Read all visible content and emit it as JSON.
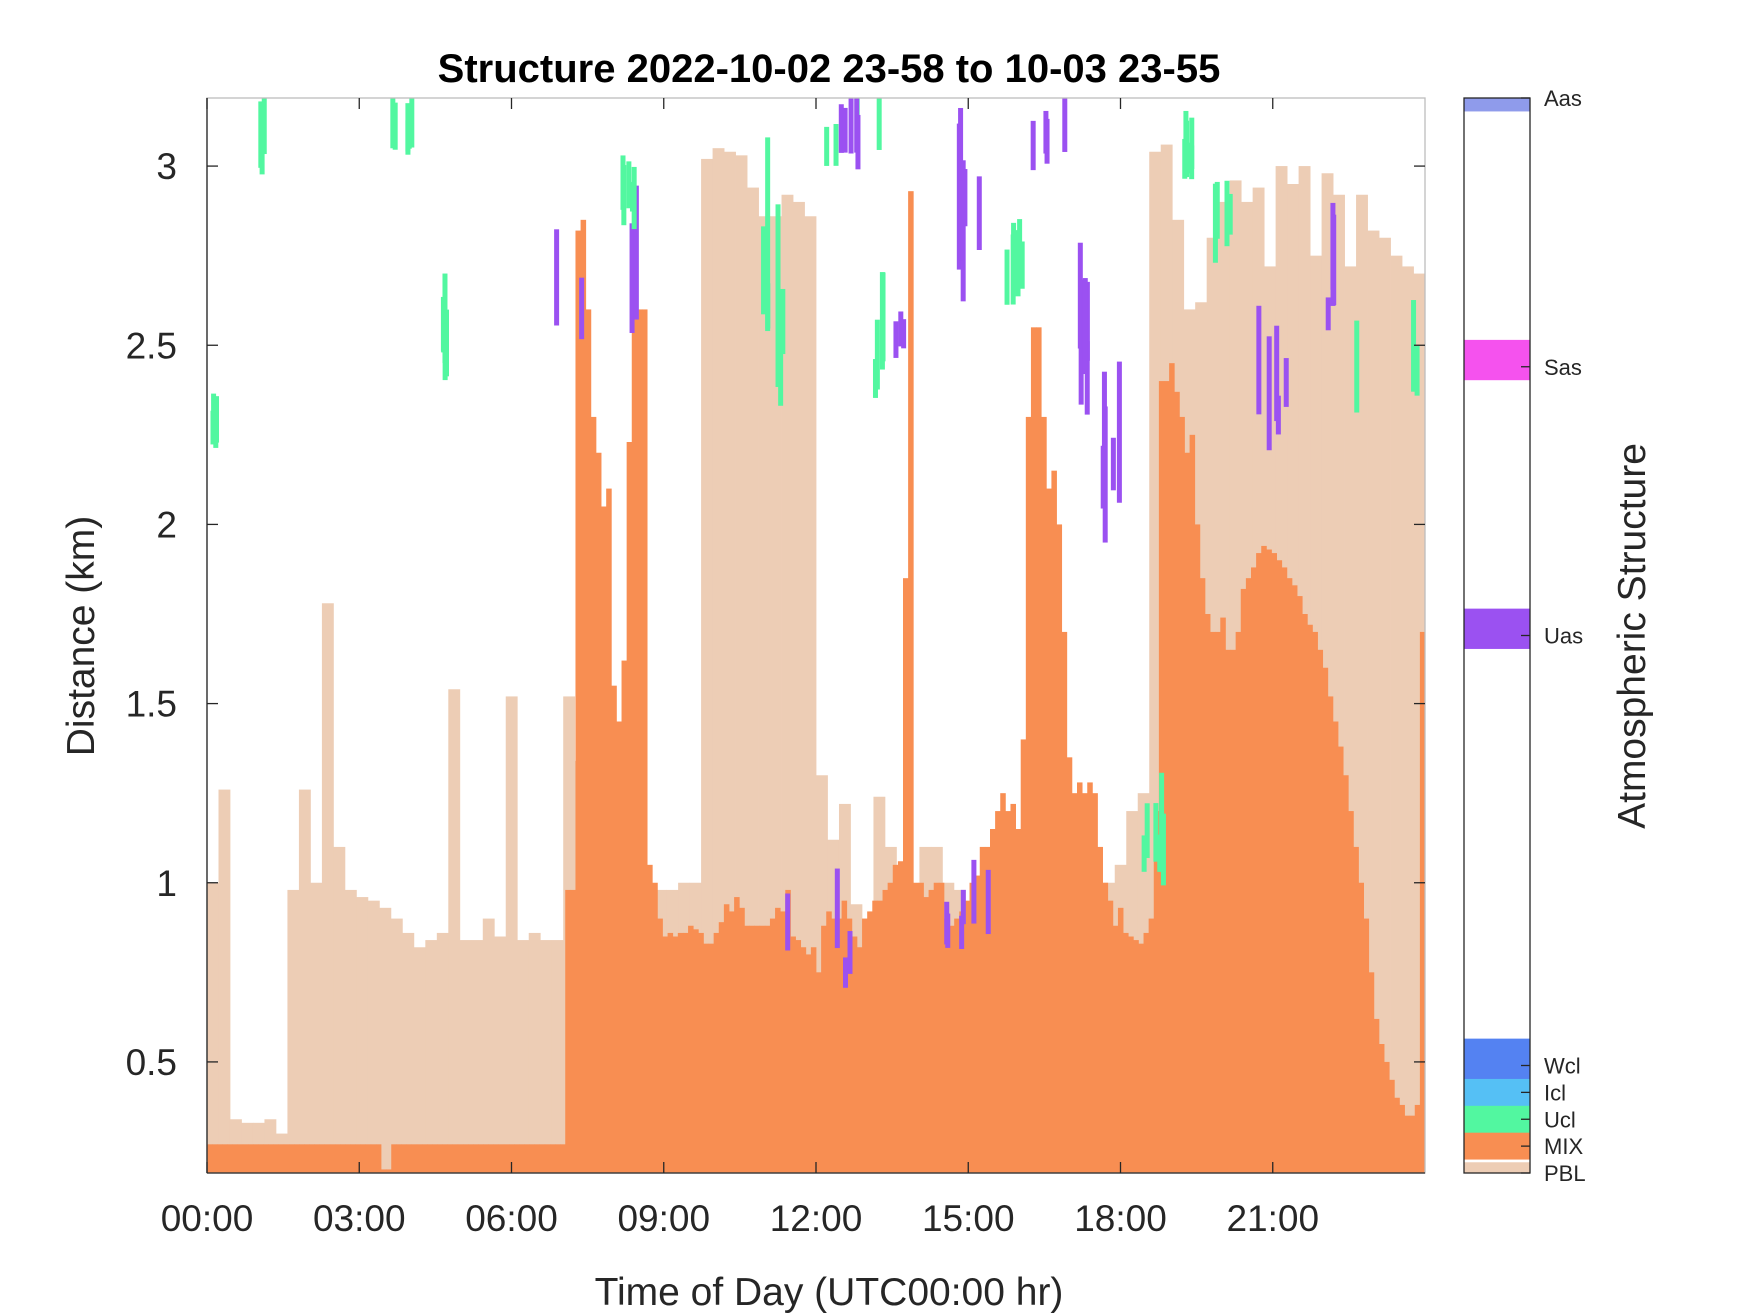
{
  "chart_data": {
    "type": "heatmap",
    "title": "Structure 2022-10-02 23-58 to 10-03 23-55",
    "xlabel": "Time of Day (UTC00:00 hr)",
    "ylabel": "Distance (km)",
    "xlim": [
      0,
      24
    ],
    "ylim": [
      0.19,
      3.19
    ],
    "x_ticks": [
      {
        "v": 0,
        "label": "00:00"
      },
      {
        "v": 3,
        "label": "03:00"
      },
      {
        "v": 6,
        "label": "06:00"
      },
      {
        "v": 9,
        "label": "09:00"
      },
      {
        "v": 12,
        "label": "12:00"
      },
      {
        "v": 15,
        "label": "15:00"
      },
      {
        "v": 18,
        "label": "18:00"
      },
      {
        "v": 21,
        "label": "21:00"
      }
    ],
    "y_ticks": [
      {
        "v": 0.5,
        "label": "0.5"
      },
      {
        "v": 1,
        "label": "1"
      },
      {
        "v": 1.5,
        "label": "1.5"
      },
      {
        "v": 2,
        "label": "2"
      },
      {
        "v": 2.5,
        "label": "2.5"
      },
      {
        "v": 3,
        "label": "3"
      }
    ],
    "colorbar": {
      "label": "Atmospheric Structure",
      "classes": [
        {
          "name": "PBL",
          "color": "#EDCDB5"
        },
        {
          "name": "MIX",
          "color": "#F88E52"
        },
        {
          "name": "Ucl",
          "color": "#52F7A0"
        },
        {
          "name": "Icl",
          "color": "#55C0F5"
        },
        {
          "name": "Wcl",
          "color": "#5482F2"
        },
        {
          "name": "Uas",
          "color": "#9B51F1"
        },
        {
          "name": "Sas",
          "color": "#F552EE"
        },
        {
          "name": "Aas",
          "color": "#8F9BEB"
        }
      ]
    },
    "pbl_top_km": [
      1.0,
      1.26,
      0.34,
      0.33,
      0.33,
      0.34,
      0.3,
      0.98,
      1.26,
      1.0,
      1.78,
      1.1,
      0.98,
      0.96,
      0.95,
      0.93,
      0.9,
      0.86,
      0.82,
      0.84,
      0.86,
      1.54,
      0.84,
      0.84,
      0.9,
      0.85,
      1.52,
      0.84,
      0.86,
      0.84,
      0.84,
      1.52,
      1.34,
      1.0,
      0.2,
      0.2,
      0.92,
      0.9,
      0.9,
      0.98,
      0.98,
      1.0,
      1.0,
      3.02,
      3.05,
      3.04,
      3.03,
      2.94,
      2.86,
      2.86,
      2.92,
      2.9,
      2.86,
      1.3,
      1.12,
      1.22,
      0.94,
      0.9,
      1.24,
      1.1,
      1.0,
      0.86,
      1.1,
      1.1,
      1.0,
      0.98,
      0.9,
      0.96,
      0.92,
      0.84,
      0.84,
      0.84,
      0.82,
      1.7,
      0.82,
      0.88,
      0.9,
      0.93,
      1.0,
      1.05,
      1.2,
      1.25,
      3.04,
      3.06,
      2.85,
      2.6,
      2.62,
      2.8,
      2.9,
      2.96,
      2.9,
      2.94,
      2.72,
      3.0,
      2.95,
      3.0,
      2.75,
      2.98,
      2.92,
      2.72,
      2.92,
      2.82,
      2.8,
      2.75,
      2.72,
      2.7
    ],
    "mix_top_km": [
      0.27,
      0.27,
      0.27,
      0.27,
      0.27,
      0.27,
      0.27,
      0.27,
      0.27,
      0.27,
      0.27,
      0.27,
      0.27,
      0.27,
      0.27,
      0.27,
      0.27,
      0.27,
      0.27,
      0.27,
      0.27,
      0.27,
      0.27,
      0.27,
      0.27,
      0.27,
      0.27,
      0.27,
      0.27,
      0.27,
      0.27,
      0.27,
      0.27,
      0.27,
      0.2,
      0.2,
      0.27,
      0.27,
      0.27,
      0.27,
      0.27,
      0.27,
      0.27,
      0.27,
      0.27,
      0.27,
      0.27,
      0.27,
      0.27,
      0.27,
      0.27,
      0.27,
      0.27,
      0.27,
      0.27,
      0.27,
      0.27,
      0.27,
      0.27,
      0.27,
      0.27,
      0.27,
      0.27,
      0.27,
      0.27,
      0.27,
      0.27,
      0.27,
      0.27,
      0.27,
      0.98,
      0.98,
      2.82,
      2.85,
      2.6,
      2.3,
      2.2,
      2.05,
      2.1,
      1.55,
      1.45,
      1.62,
      2.23,
      2.7,
      2.6,
      2.6,
      1.05,
      1.0,
      0.9,
      0.85,
      0.86,
      0.85,
      0.86,
      0.86,
      0.88,
      0.87,
      0.86,
      0.83,
      0.83,
      0.86,
      0.89,
      0.94,
      0.92,
      0.96,
      0.93,
      0.88,
      0.88,
      0.88,
      0.88,
      0.88,
      0.9,
      0.93,
      0.92,
      0.98,
      0.85,
      0.84,
      0.82,
      0.8,
      0.82,
      0.75,
      0.88,
      0.92,
      0.9,
      0.9,
      0.95,
      0.9,
      0.85,
      0.82,
      0.9,
      0.92,
      0.95,
      0.95,
      0.98,
      1.0,
      1.05,
      1.06,
      1.85,
      2.93,
      1.0,
      1.0,
      0.96,
      0.98,
      1.0,
      1.0,
      0.9,
      0.88,
      0.9,
      0.92,
      0.95,
      1.0,
      1.02,
      1.1,
      1.1,
      1.15,
      1.2,
      1.25,
      1.2,
      1.22,
      1.15,
      1.4,
      2.3,
      2.55,
      2.55,
      2.3,
      2.1,
      2.15,
      2.0,
      1.7,
      1.35,
      1.25,
      1.28,
      1.25,
      1.28,
      1.25,
      1.1,
      1.0,
      0.95,
      0.88,
      0.93,
      0.86,
      0.85,
      0.84,
      0.83,
      0.86,
      0.9,
      1.2,
      2.4,
      2.4,
      2.45,
      2.37,
      2.3,
      2.2,
      2.25,
      2.0,
      1.85,
      1.75,
      1.7,
      1.7,
      1.74,
      1.65,
      1.65,
      1.7,
      1.82,
      1.85,
      1.88,
      1.92,
      1.94,
      1.93,
      1.92,
      1.9,
      1.88,
      1.85,
      1.83,
      1.8,
      1.75,
      1.72,
      1.7,
      1.65,
      1.6,
      1.52,
      1.45,
      1.38,
      1.3,
      1.2,
      1.1,
      1.0,
      0.9,
      0.75,
      0.62,
      0.55,
      0.5,
      0.45,
      0.4,
      0.38,
      0.35,
      0.35,
      0.38,
      1.7
    ]
  }
}
